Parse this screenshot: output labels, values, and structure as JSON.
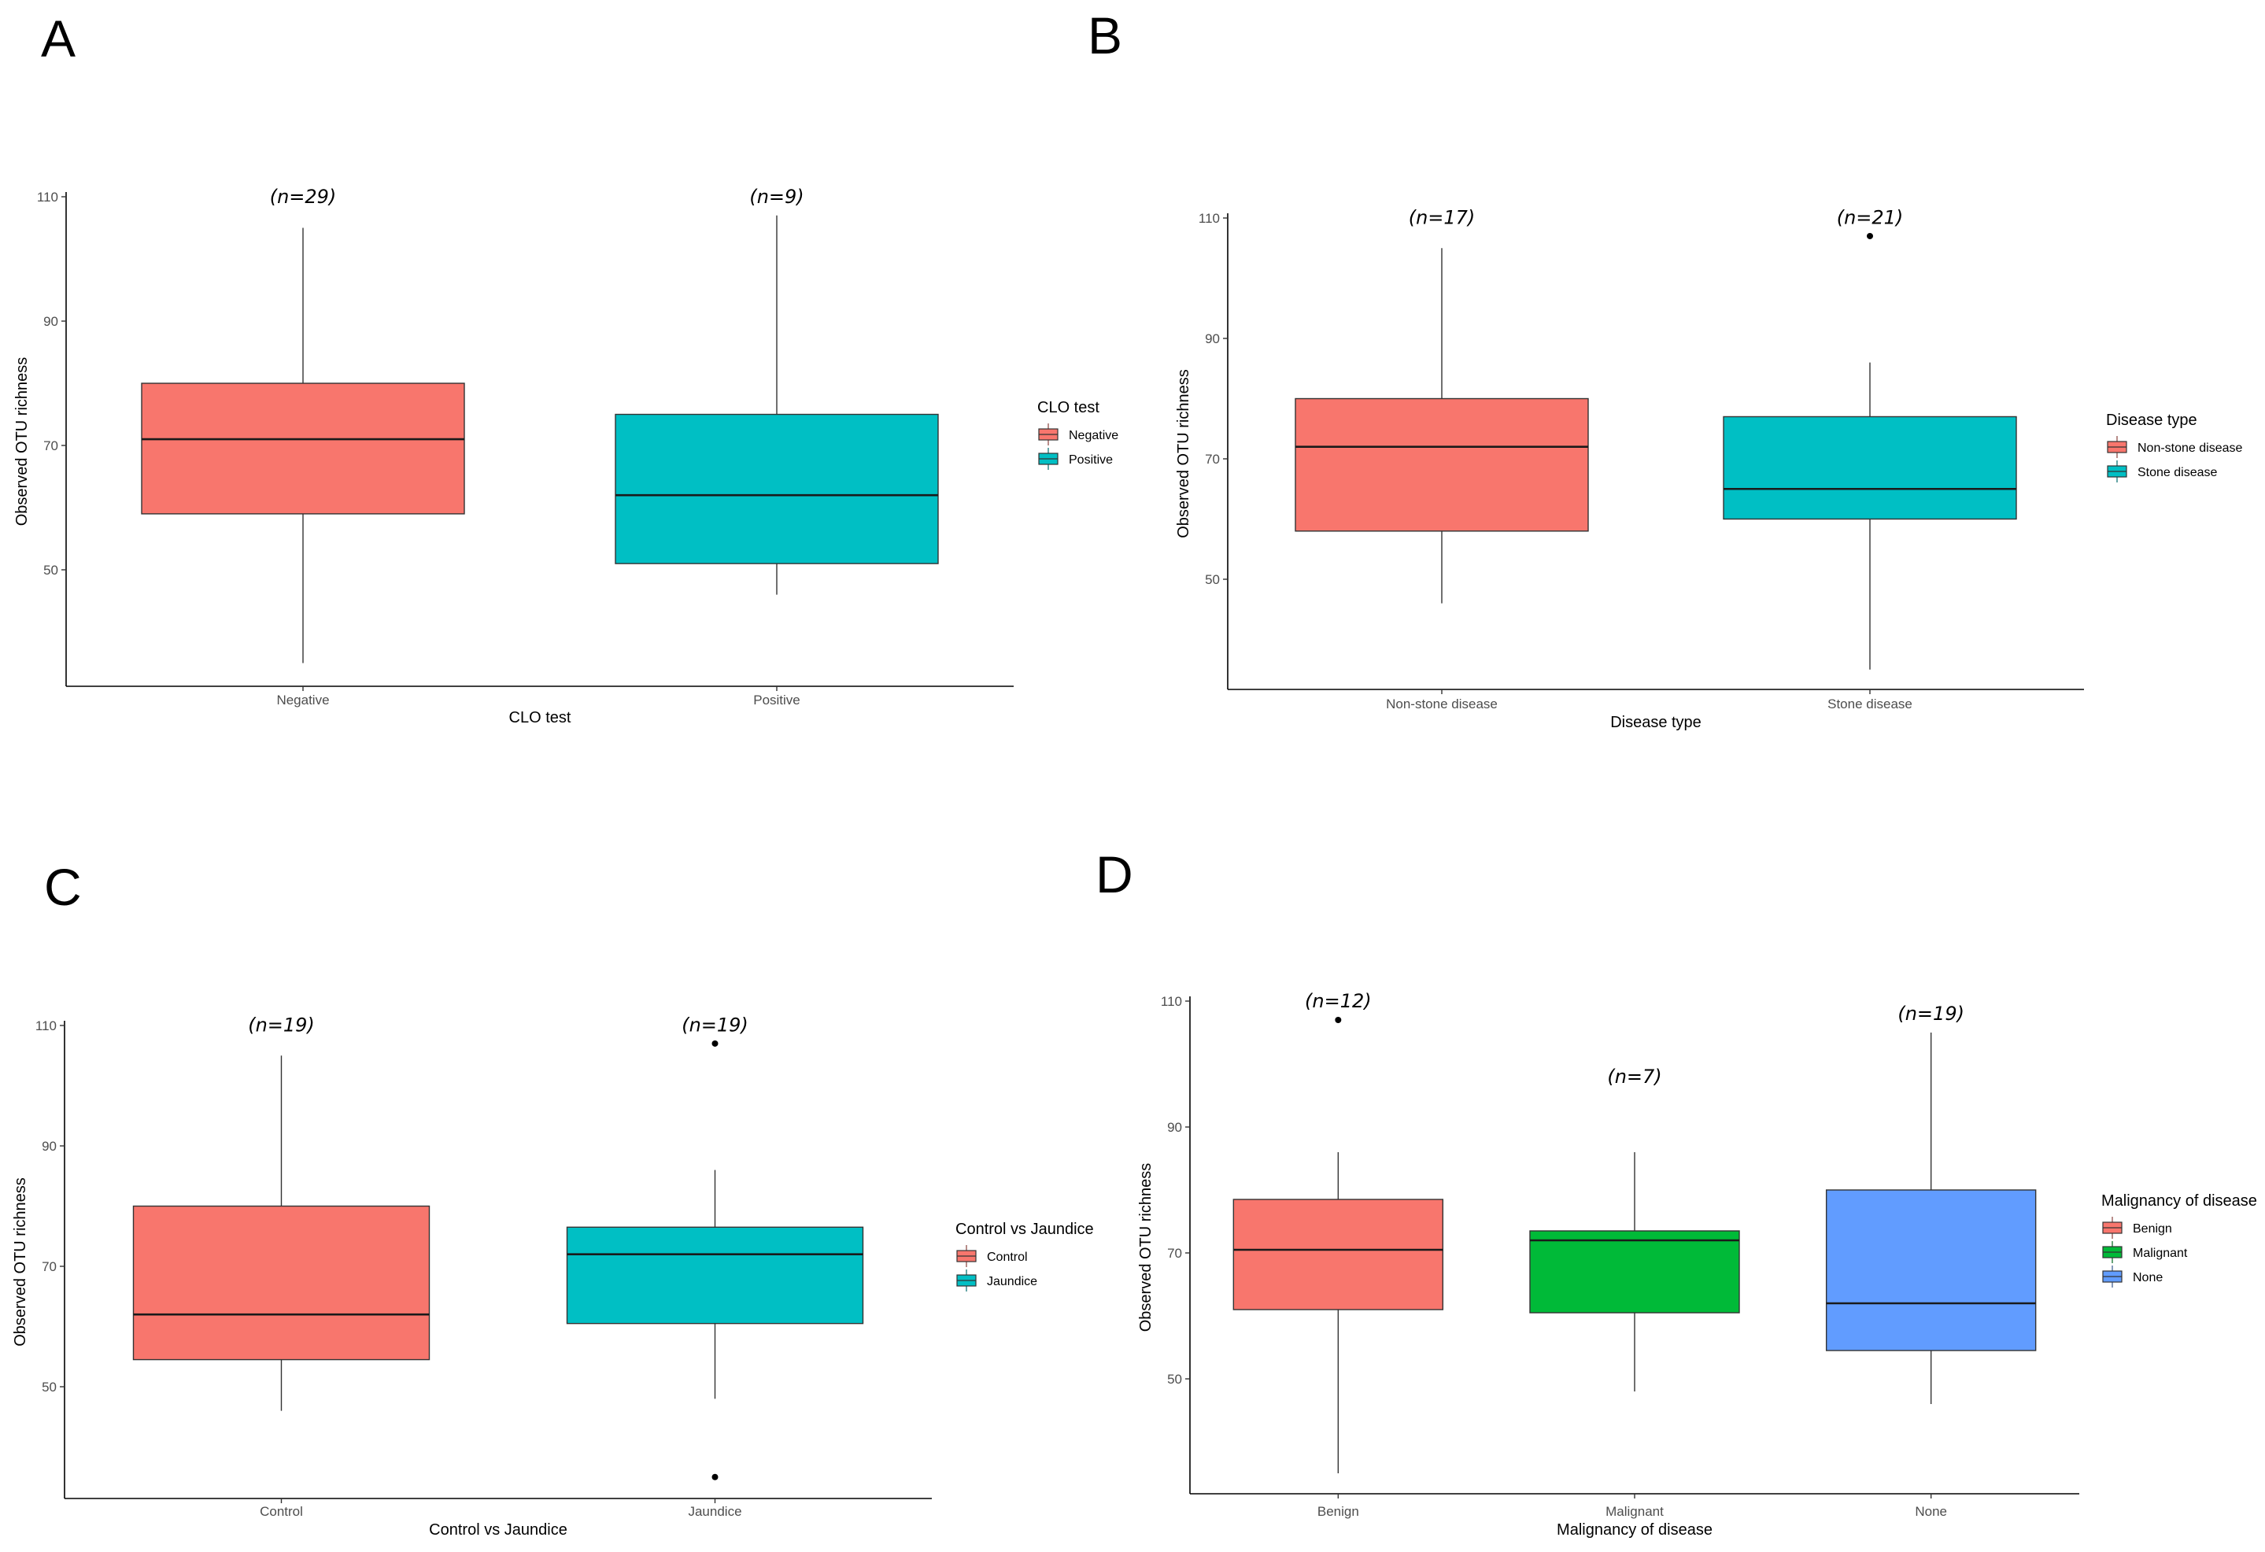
{
  "chart_data": [
    {
      "panel_label": "A",
      "type": "boxplot",
      "xlabel": "CLO test",
      "ylabel": "Observed OTU richness",
      "ylim": [
        32,
        110
      ],
      "yticks": [
        50,
        70,
        90,
        110
      ],
      "legend": {
        "title": "CLO test",
        "position": "right"
      },
      "categories": [
        "Negative",
        "Positive"
      ],
      "n_labels": [
        "(n=29)",
        "(n=9)"
      ],
      "colors": [
        "#F8766D",
        "#00BFC4"
      ],
      "boxes": [
        {
          "min": 35,
          "q1": 59,
          "median": 71,
          "q3": 80,
          "max": 105,
          "outliers": []
        },
        {
          "min": 46,
          "q1": 51,
          "median": 62,
          "q3": 75,
          "max": 107,
          "outliers": []
        }
      ]
    },
    {
      "panel_label": "B",
      "type": "boxplot",
      "xlabel": "Disease type",
      "ylabel": "Observed OTU richness",
      "ylim": [
        32,
        110
      ],
      "yticks": [
        50,
        70,
        90,
        110
      ],
      "legend": {
        "title": "Disease type",
        "position": "right"
      },
      "categories": [
        "Non-stone disease",
        "Stone disease"
      ],
      "n_labels": [
        "(n=17)",
        "(n=21)"
      ],
      "colors": [
        "#F8766D",
        "#00BFC4"
      ],
      "boxes": [
        {
          "min": 46,
          "q1": 58,
          "median": 72,
          "q3": 80,
          "max": 105,
          "outliers": []
        },
        {
          "min": 35,
          "q1": 60,
          "median": 65,
          "q3": 77,
          "max": 86,
          "outliers": [
            107
          ]
        }
      ]
    },
    {
      "panel_label": "C",
      "type": "boxplot",
      "xlabel": "Control vs Jaundice",
      "ylabel": "Observed OTU richness",
      "ylim": [
        32,
        110
      ],
      "yticks": [
        50,
        70,
        90,
        110
      ],
      "legend": {
        "title": "Control vs Jaundice",
        "position": "right"
      },
      "categories": [
        "Control",
        "Jaundice"
      ],
      "n_labels": [
        "(n=19)",
        "(n=19)"
      ],
      "colors": [
        "#F8766D",
        "#00BFC4"
      ],
      "boxes": [
        {
          "min": 46,
          "q1": 54.5,
          "median": 62,
          "q3": 80,
          "max": 105,
          "outliers": []
        },
        {
          "min": 48,
          "q1": 60.5,
          "median": 72,
          "q3": 76.5,
          "max": 86,
          "outliers": [
            107,
            35
          ]
        }
      ]
    },
    {
      "panel_label": "D",
      "type": "boxplot",
      "xlabel": "Malignancy of disease",
      "ylabel": "Observed OTU richness",
      "ylim": [
        32,
        110
      ],
      "yticks": [
        50,
        70,
        90,
        110
      ],
      "legend": {
        "title": "Malignancy of disease",
        "position": "right"
      },
      "categories": [
        "Benign",
        "Malignant",
        "None"
      ],
      "n_labels": [
        "(n=12)",
        "(n=7)",
        "(n=19)"
      ],
      "n_label_y": [
        109,
        97,
        107
      ],
      "colors": [
        "#F8766D",
        "#00BA38",
        "#619CFF"
      ],
      "boxes": [
        {
          "min": 35,
          "q1": 61,
          "median": 70.5,
          "q3": 78.5,
          "max": 86,
          "outliers": [
            107
          ]
        },
        {
          "min": 48,
          "q1": 60.5,
          "median": 72,
          "q3": 73.5,
          "max": 86,
          "outliers": []
        },
        {
          "min": 46,
          "q1": 54.5,
          "median": 62,
          "q3": 80,
          "max": 105,
          "outliers": []
        }
      ]
    }
  ]
}
